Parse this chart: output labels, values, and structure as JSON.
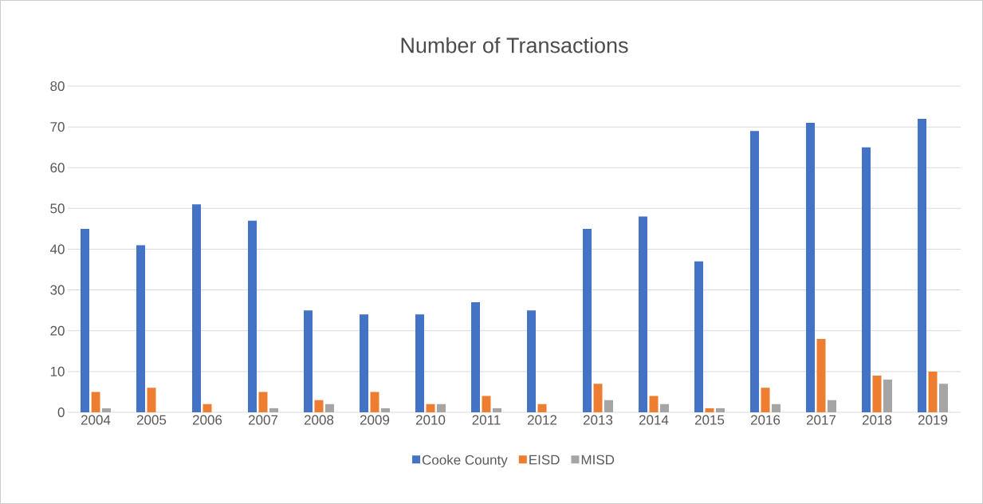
{
  "chart_data": {
    "type": "bar",
    "title": "Number of Transactions",
    "categories": [
      "2004",
      "2005",
      "2006",
      "2007",
      "2008",
      "2009",
      "2010",
      "2011",
      "2012",
      "2013",
      "2014",
      "2015",
      "2016",
      "2017",
      "2018",
      "2019"
    ],
    "series": [
      {
        "name": "Cooke County",
        "color": "#4472c4",
        "values": [
          45,
          41,
          51,
          47,
          25,
          24,
          24,
          27,
          25,
          45,
          48,
          37,
          69,
          71,
          65,
          72
        ]
      },
      {
        "name": "EISD",
        "color": "#ed7d31",
        "values": [
          5,
          6,
          2,
          5,
          3,
          5,
          2,
          4,
          2,
          7,
          4,
          1,
          6,
          18,
          9,
          10
        ]
      },
      {
        "name": "MISD",
        "color": "#a5a5a5",
        "values": [
          1,
          0,
          0,
          1,
          2,
          1,
          2,
          1,
          0,
          3,
          2,
          1,
          2,
          3,
          8,
          7
        ]
      }
    ],
    "ylim": [
      0,
      80
    ],
    "yticks": [
      0,
      10,
      20,
      30,
      40,
      50,
      60,
      70,
      80
    ],
    "grid": "y",
    "legend": "bottom"
  }
}
